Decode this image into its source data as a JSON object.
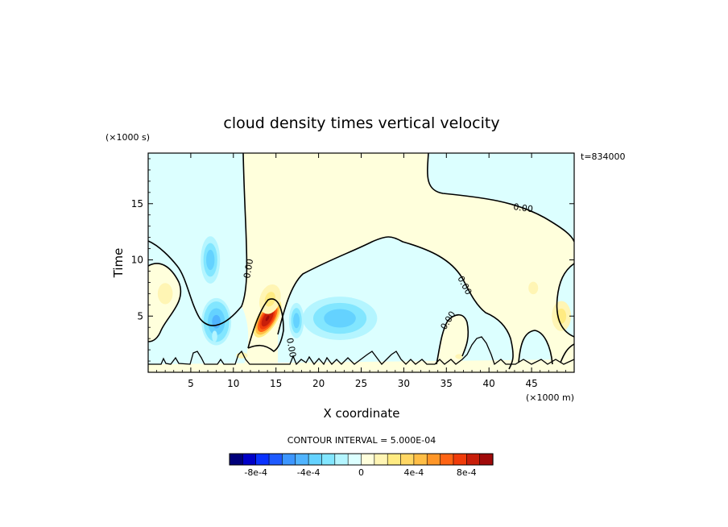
{
  "chart_data": {
    "type": "heatmap",
    "title": "cloud density times vertical velocity",
    "xlabel": "X coordinate",
    "ylabel": "Time",
    "x_unit": "(×1000 m)",
    "y_unit": "(×1000 s)",
    "timestamp": "t=834000",
    "xlim": [
      0,
      50
    ],
    "ylim": [
      0,
      19.5
    ],
    "x_ticks": [
      5,
      10,
      15,
      20,
      25,
      30,
      35,
      40,
      45
    ],
    "y_ticks": [
      5,
      10,
      15
    ],
    "contour_interval_text": "CONTOUR INTERVAL = 5.000E-04",
    "contour_label": "0.00",
    "colorbar": {
      "levels": [
        -0.001,
        -0.0009,
        -0.0008,
        -0.0007,
        -0.0006,
        -0.0005,
        -0.0004,
        -0.0003,
        -0.0002,
        -0.0001,
        0,
        0.0001,
        0.0002,
        0.0003,
        0.0004,
        0.0005,
        0.0006,
        0.0007,
        0.0008,
        0.0009,
        0.001
      ],
      "colors": [
        "#00007a",
        "#0000c8",
        "#0a32ff",
        "#1e5aff",
        "#3c96ff",
        "#50b4ff",
        "#64d2ff",
        "#82e6ff",
        "#b4f5ff",
        "#dcffff",
        "#ffffdc",
        "#fff5b4",
        "#ffeb82",
        "#ffd764",
        "#ffbe46",
        "#ff9628",
        "#ff6414",
        "#f03c0a",
        "#c81e0a",
        "#a00a0a"
      ],
      "tick_labels": [
        "-8e-4",
        "-4e-4",
        "0",
        "4e-4",
        "8e-4"
      ],
      "tick_values": [
        -0.0008,
        -0.0004,
        0,
        0.0004,
        0.0008
      ]
    },
    "blobs": [
      {
        "x": 14.0,
        "y": 4.8,
        "sx": 1.3,
        "sy": 2.2,
        "rot": 0.55,
        "amp": 0.00095
      },
      {
        "x": 14.3,
        "y": 6.5,
        "sx": 1.6,
        "sy": 1.8,
        "rot": 0.3,
        "amp": 0.00025
      },
      {
        "x": 8.0,
        "y": 4.5,
        "sx": 2.0,
        "sy": 2.4,
        "rot": 0.0,
        "amp": -0.00045
      },
      {
        "x": 7.3,
        "y": 10.0,
        "sx": 1.3,
        "sy": 2.4,
        "rot": 0.0,
        "amp": -0.00035
      },
      {
        "x": 7.8,
        "y": 3.2,
        "sx": 0.5,
        "sy": 0.8,
        "rot": 0.0,
        "amp": -0.0002
      },
      {
        "x": 17.4,
        "y": 4.6,
        "sx": 1.0,
        "sy": 1.8,
        "rot": 0.0,
        "amp": -0.00035
      },
      {
        "x": 22.5,
        "y": 4.8,
        "sx": 5.0,
        "sy": 2.2,
        "rot": 0.0,
        "amp": -0.00035
      },
      {
        "x": 2.0,
        "y": 7.0,
        "sx": 1.4,
        "sy": 1.5,
        "rot": 0.0,
        "amp": 0.0002
      },
      {
        "x": 48.5,
        "y": 5.0,
        "sx": 1.5,
        "sy": 1.8,
        "rot": 0.0,
        "amp": 0.00025
      },
      {
        "x": 45.2,
        "y": 7.5,
        "sx": 0.9,
        "sy": 0.9,
        "rot": 0.0,
        "amp": 0.00018
      },
      {
        "x": 11.0,
        "y": 1.5,
        "sx": 1.8,
        "sy": 0.7,
        "rot": 0.0,
        "amp": 0.00012
      },
      {
        "x": 36.5,
        "y": 1.4,
        "sx": 1.2,
        "sy": 0.6,
        "rot": 0.0,
        "amp": 0.00012
      }
    ]
  }
}
